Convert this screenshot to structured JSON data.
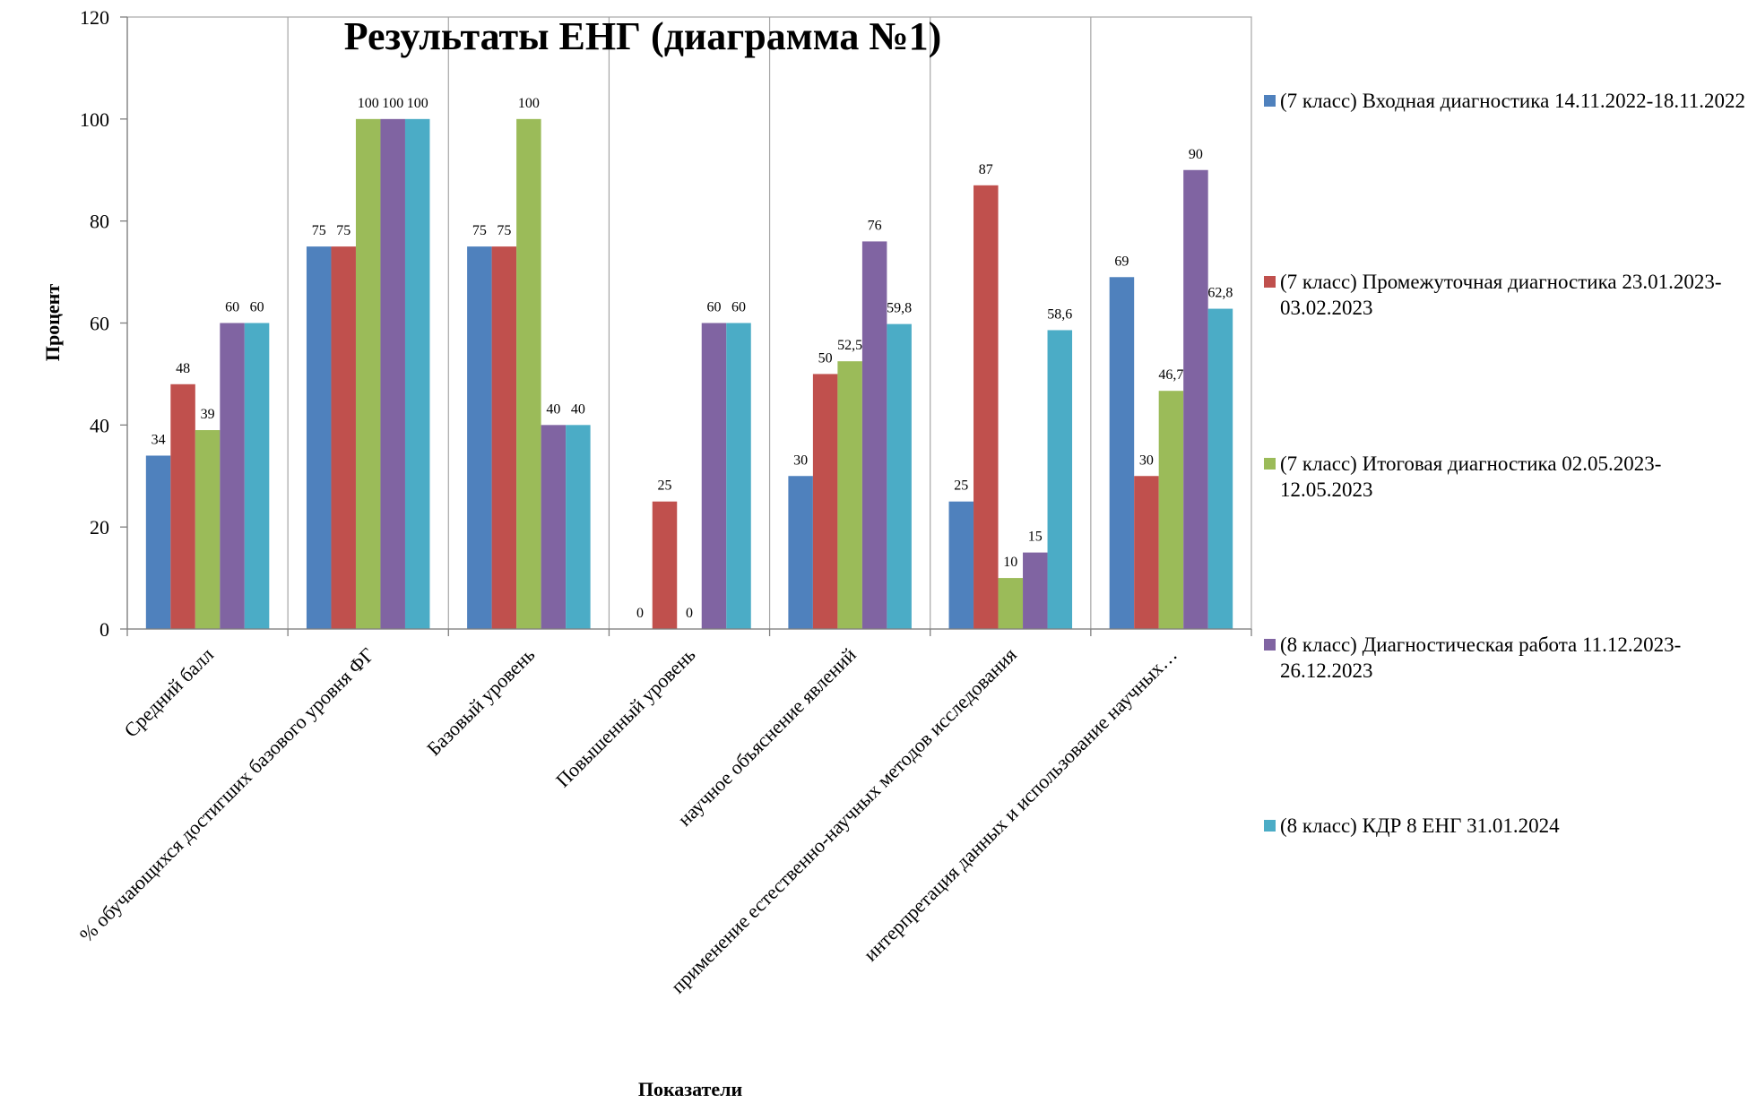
{
  "chart_data": {
    "type": "bar",
    "title": "Результаты ЕНГ (диаграмма №1)",
    "xlabel": "Показатели",
    "ylabel": "Процент",
    "ylim": [
      0,
      120
    ],
    "yticks": [
      0,
      20,
      40,
      60,
      80,
      100,
      120
    ],
    "grid": "vertical category gridlines",
    "legend_position": "right",
    "categories": [
      "Средний балл",
      "% обучающихся достигших базового уровня ФГ",
      "Базовый уровень",
      "Повышенный уровень",
      "научное объяснение явлений",
      "применение естественно-научных методов исследования",
      "интерпретация данных и использование научных…"
    ],
    "series": [
      {
        "name": "(7 класс) Входная диагностика 14.11.2022-18.11.2022",
        "color": "#4F81BD",
        "values": [
          34,
          75,
          75,
          0,
          30,
          25,
          69
        ],
        "labels": [
          "34",
          "75",
          "75",
          "0",
          "30",
          "25",
          "69"
        ]
      },
      {
        "name": "(7 класс) Промежуточная диагностика 23.01.2023-03.02.2023",
        "color": "#C0504D",
        "values": [
          48,
          75,
          75,
          25,
          50,
          87,
          30
        ],
        "labels": [
          "48",
          "75",
          "75",
          "25",
          "50",
          "87",
          "30"
        ]
      },
      {
        "name": "(7 класс) Итоговая диагностика 02.05.2023-12.05.2023",
        "color": "#9BBB59",
        "values": [
          39,
          100,
          100,
          0,
          52.5,
          10,
          46.7
        ],
        "labels": [
          "39",
          "100",
          "100",
          "0",
          "52,5",
          "10",
          "46,7"
        ]
      },
      {
        "name": "(8 класс) Диагностическая работа 11.12.2023-26.12.2023",
        "color": "#8064A2",
        "values": [
          60,
          100,
          40,
          60,
          76,
          15,
          90
        ],
        "labels": [
          "60",
          "100",
          "40",
          "60",
          "76",
          "15",
          "90"
        ]
      },
      {
        "name": "(8 класс) КДР 8 ЕНГ 31.01.2024",
        "color": "#4BACC6",
        "values": [
          60,
          100,
          40,
          60,
          59.8,
          58.6,
          62.8
        ],
        "labels": [
          "60",
          "100",
          "40",
          "60",
          "59,8",
          "58,6",
          "62,8"
        ]
      }
    ]
  }
}
